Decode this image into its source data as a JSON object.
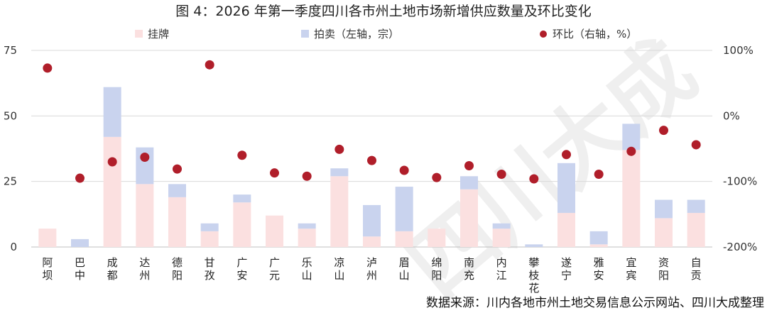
{
  "chart_data": {
    "type": "bar",
    "title": "图 4：2026 年第一季度四川各市州土地市场新增供应数量及环比变化",
    "stacked": true,
    "categories": [
      "阿坝",
      "巴中",
      "成都",
      "达州",
      "德阳",
      "甘孜",
      "广安",
      "广元",
      "乐山",
      "凉山",
      "泸州",
      "眉山",
      "绵阳",
      "南充",
      "内江",
      "攀枝花",
      "遂宁",
      "雅安",
      "宜宾",
      "资阳",
      "自贡"
    ],
    "series": [
      {
        "name": "挂牌",
        "color": "#fbe0e0",
        "axis": "left",
        "values": [
          7,
          0,
          42,
          24,
          19,
          6,
          17,
          12,
          7,
          27,
          4,
          6,
          7,
          22,
          7,
          0,
          13,
          1,
          37,
          11,
          13
        ]
      },
      {
        "name": "拍卖（左轴，宗）",
        "color": "#c9d3ee",
        "axis": "left",
        "values": [
          0,
          3,
          19,
          14,
          5,
          3,
          3,
          0,
          2,
          3,
          12,
          17,
          0,
          5,
          2,
          1,
          19,
          5,
          10,
          7,
          5
        ]
      },
      {
        "name": "环比（右轴，%）",
        "color": "#b01e2a",
        "axis": "right",
        "type": "scatter",
        "values": [
          73,
          -95,
          -70,
          -63,
          -81,
          78,
          -60,
          -87,
          -92,
          -51,
          -68,
          -83,
          -94,
          -76,
          -89,
          -96,
          -59,
          -89,
          -54,
          -22,
          -44
        ]
      }
    ],
    "y_left": {
      "ylim": [
        0,
        75
      ],
      "ticks": [
        "0",
        "25",
        "50",
        "75"
      ],
      "tick_values": [
        0,
        25,
        50,
        75
      ]
    },
    "y_right": {
      "ylim": [
        -200,
        100
      ],
      "ticks": [
        "-200%",
        "-100%",
        "0%",
        "100%"
      ],
      "tick_values": [
        -200,
        -100,
        0,
        100
      ]
    },
    "legend_placement": "top",
    "grid": true
  },
  "source_note": "数据来源：川内各地市州土地交易信息公示网站、四川大成整理",
  "watermark": "四川大成"
}
